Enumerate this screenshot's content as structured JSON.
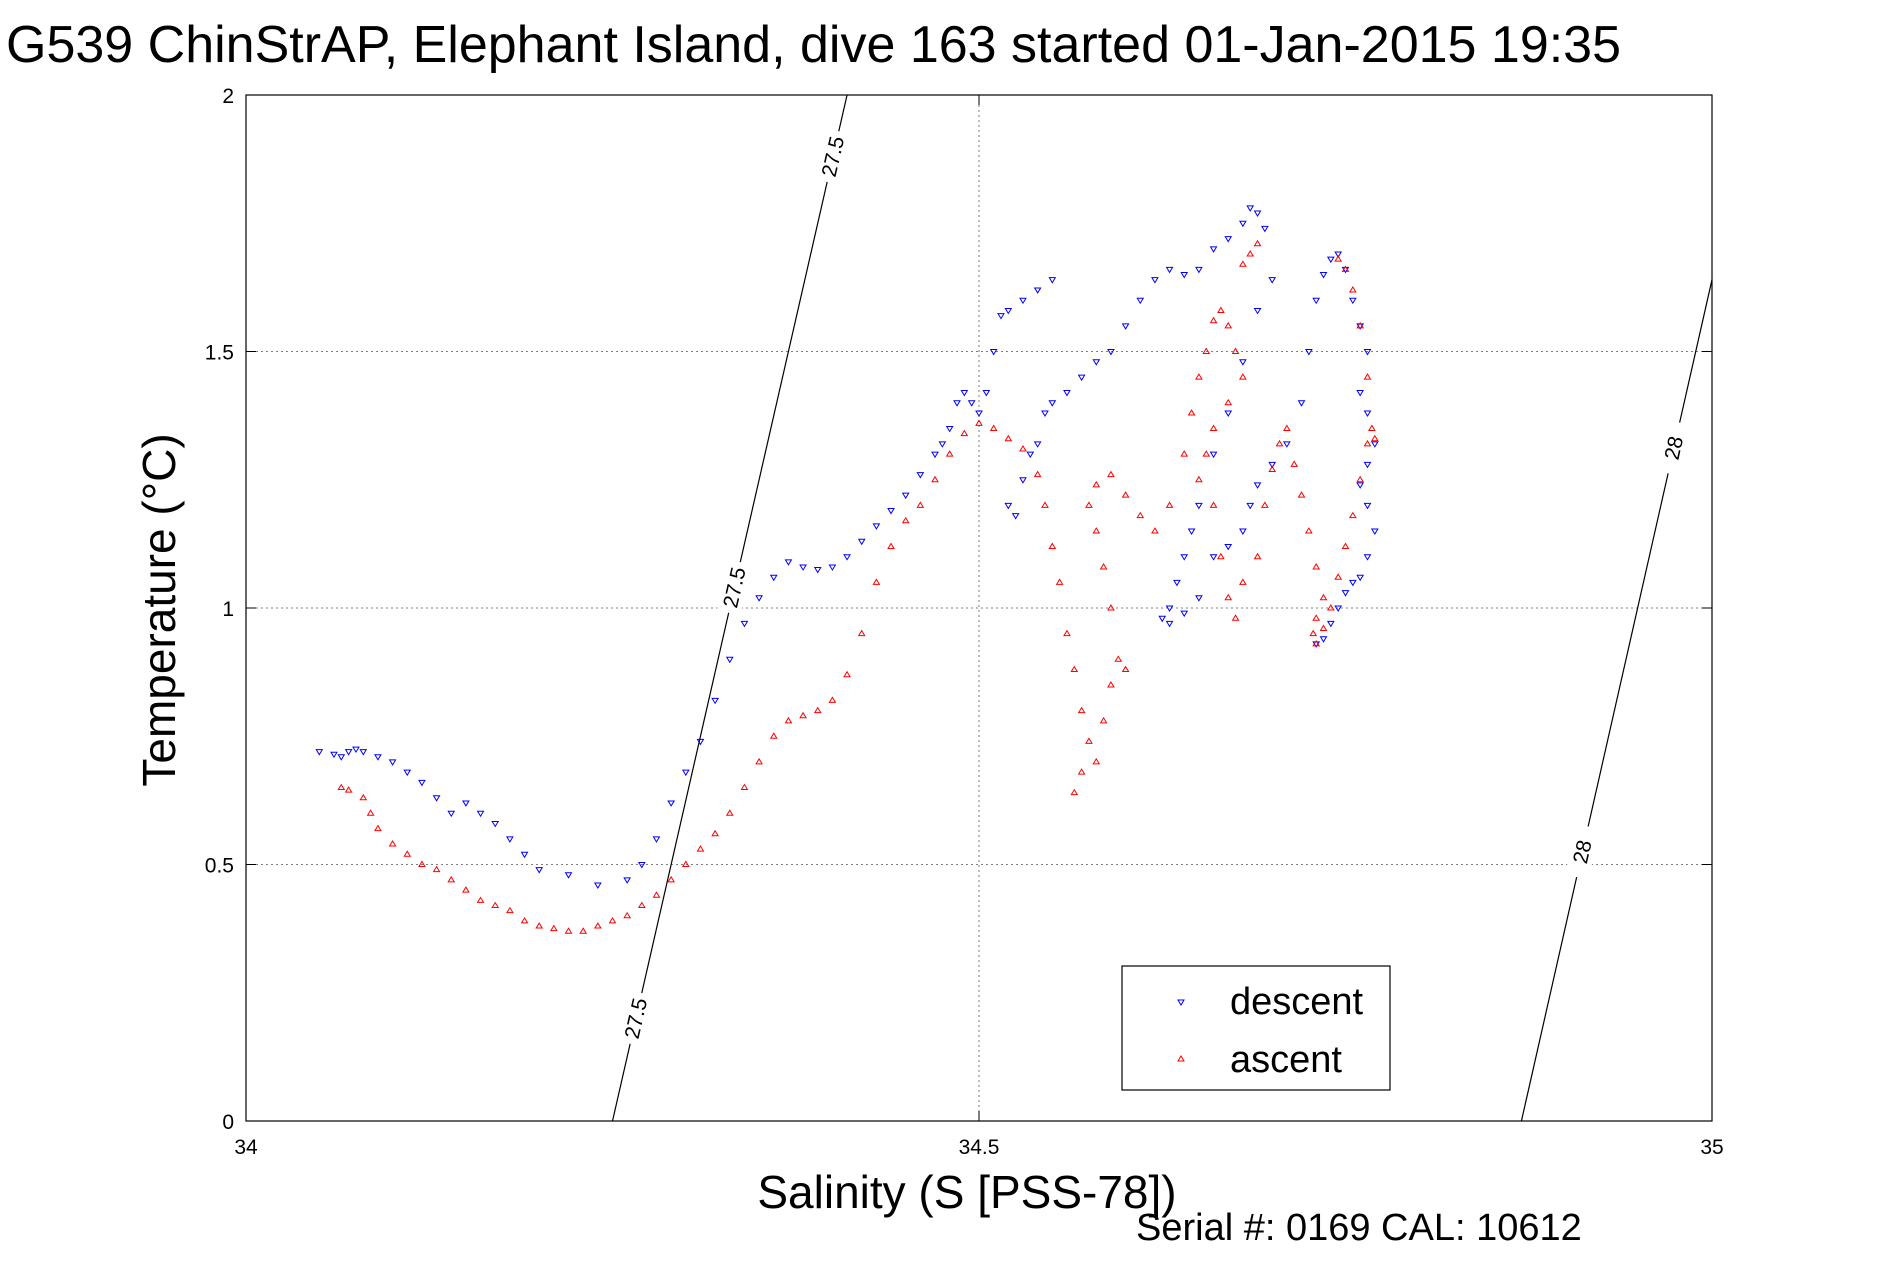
{
  "title": "G539 ChinStrAP, Elephant Island, dive 163 started 01-Jan-2015 19:35",
  "footer": "Serial #: 0169 CAL: 10612",
  "colors": {
    "descent": "#0000ff",
    "ascent": "#ff0000",
    "axes": "#000000",
    "grid": "#7f7f7f"
  },
  "chart_data": {
    "type": "scatter",
    "xlabel": "Salinity (S [PSS-78])",
    "ylabel": "Temperature (°C)",
    "xlim": [
      34,
      35
    ],
    "ylim": [
      0,
      2
    ],
    "xticks": [
      "34",
      "34.5",
      "35"
    ],
    "yticks": [
      "0",
      "0.5",
      "1",
      "1.5",
      "2"
    ],
    "grid": true,
    "legend_position": "bottom-right",
    "series": [
      {
        "name": "descent",
        "marker": "triangle-down",
        "color": "#0000ff",
        "points": [
          [
            34.05,
            0.72
          ],
          [
            34.06,
            0.715
          ],
          [
            34.065,
            0.71
          ],
          [
            34.07,
            0.72
          ],
          [
            34.075,
            0.725
          ],
          [
            34.08,
            0.72
          ],
          [
            34.09,
            0.71
          ],
          [
            34.1,
            0.7
          ],
          [
            34.11,
            0.68
          ],
          [
            34.12,
            0.66
          ],
          [
            34.13,
            0.63
          ],
          [
            34.14,
            0.6
          ],
          [
            34.15,
            0.62
          ],
          [
            34.16,
            0.6
          ],
          [
            34.17,
            0.58
          ],
          [
            34.18,
            0.55
          ],
          [
            34.19,
            0.52
          ],
          [
            34.2,
            0.49
          ],
          [
            34.22,
            0.48
          ],
          [
            34.24,
            0.46
          ],
          [
            34.26,
            0.47
          ],
          [
            34.27,
            0.5
          ],
          [
            34.28,
            0.55
          ],
          [
            34.29,
            0.62
          ],
          [
            34.3,
            0.68
          ],
          [
            34.31,
            0.74
          ],
          [
            34.32,
            0.82
          ],
          [
            34.33,
            0.9
          ],
          [
            34.34,
            0.97
          ],
          [
            34.35,
            1.02
          ],
          [
            34.36,
            1.06
          ],
          [
            34.37,
            1.09
          ],
          [
            34.38,
            1.08
          ],
          [
            34.39,
            1.075
          ],
          [
            34.4,
            1.08
          ],
          [
            34.41,
            1.1
          ],
          [
            34.42,
            1.13
          ],
          [
            34.43,
            1.16
          ],
          [
            34.44,
            1.19
          ],
          [
            34.45,
            1.22
          ],
          [
            34.46,
            1.26
          ],
          [
            34.47,
            1.3
          ],
          [
            34.475,
            1.32
          ],
          [
            34.48,
            1.35
          ],
          [
            34.485,
            1.4
          ],
          [
            34.49,
            1.42
          ],
          [
            34.495,
            1.4
          ],
          [
            34.5,
            1.38
          ],
          [
            34.505,
            1.42
          ],
          [
            34.51,
            1.5
          ],
          [
            34.515,
            1.57
          ],
          [
            34.52,
            1.58
          ],
          [
            34.53,
            1.6
          ],
          [
            34.54,
            1.62
          ],
          [
            34.55,
            1.64
          ],
          [
            34.52,
            1.2
          ],
          [
            34.525,
            1.18
          ],
          [
            34.53,
            1.25
          ],
          [
            34.535,
            1.3
          ],
          [
            34.54,
            1.32
          ],
          [
            34.545,
            1.38
          ],
          [
            34.55,
            1.4
          ],
          [
            34.56,
            1.42
          ],
          [
            34.57,
            1.45
          ],
          [
            34.58,
            1.48
          ],
          [
            34.59,
            1.5
          ],
          [
            34.6,
            1.55
          ],
          [
            34.61,
            1.6
          ],
          [
            34.62,
            1.64
          ],
          [
            34.63,
            1.66
          ],
          [
            34.64,
            1.65
          ],
          [
            34.65,
            1.66
          ],
          [
            34.66,
            1.7
          ],
          [
            34.67,
            1.72
          ],
          [
            34.68,
            1.75
          ],
          [
            34.685,
            1.78
          ],
          [
            34.69,
            1.77
          ],
          [
            34.695,
            1.74
          ],
          [
            34.7,
            1.64
          ],
          [
            34.69,
            1.58
          ],
          [
            34.68,
            1.48
          ],
          [
            34.67,
            1.38
          ],
          [
            34.66,
            1.3
          ],
          [
            34.65,
            1.2
          ],
          [
            34.645,
            1.15
          ],
          [
            34.64,
            1.1
          ],
          [
            34.635,
            1.05
          ],
          [
            34.63,
            1.0
          ],
          [
            34.625,
            0.98
          ],
          [
            34.63,
            0.97
          ],
          [
            34.64,
            0.99
          ],
          [
            34.65,
            1.02
          ],
          [
            34.66,
            1.1
          ],
          [
            34.67,
            1.12
          ],
          [
            34.68,
            1.15
          ],
          [
            34.685,
            1.2
          ],
          [
            34.69,
            1.24
          ],
          [
            34.7,
            1.28
          ],
          [
            34.71,
            1.32
          ],
          [
            34.72,
            1.4
          ],
          [
            34.725,
            1.5
          ],
          [
            34.73,
            1.6
          ],
          [
            34.735,
            1.65
          ],
          [
            34.74,
            1.68
          ],
          [
            34.745,
            1.69
          ],
          [
            34.75,
            1.66
          ],
          [
            34.755,
            1.6
          ],
          [
            34.76,
            1.55
          ],
          [
            34.765,
            1.5
          ],
          [
            34.76,
            1.42
          ],
          [
            34.765,
            1.38
          ],
          [
            34.77,
            1.32
          ],
          [
            34.765,
            1.28
          ],
          [
            34.76,
            1.24
          ],
          [
            34.765,
            1.2
          ],
          [
            34.77,
            1.15
          ],
          [
            34.765,
            1.1
          ],
          [
            34.76,
            1.06
          ],
          [
            34.755,
            1.05
          ],
          [
            34.75,
            1.03
          ],
          [
            34.745,
            1.0
          ],
          [
            34.74,
            0.97
          ],
          [
            34.735,
            0.94
          ],
          [
            34.73,
            0.93
          ]
        ]
      },
      {
        "name": "ascent",
        "marker": "triangle-up",
        "color": "#ff0000",
        "points": [
          [
            34.065,
            0.65
          ],
          [
            34.07,
            0.645
          ],
          [
            34.08,
            0.63
          ],
          [
            34.085,
            0.6
          ],
          [
            34.09,
            0.57
          ],
          [
            34.1,
            0.54
          ],
          [
            34.11,
            0.52
          ],
          [
            34.12,
            0.5
          ],
          [
            34.13,
            0.49
          ],
          [
            34.14,
            0.47
          ],
          [
            34.15,
            0.45
          ],
          [
            34.16,
            0.43
          ],
          [
            34.17,
            0.42
          ],
          [
            34.18,
            0.41
          ],
          [
            34.19,
            0.39
          ],
          [
            34.2,
            0.38
          ],
          [
            34.21,
            0.375
          ],
          [
            34.22,
            0.37
          ],
          [
            34.23,
            0.37
          ],
          [
            34.24,
            0.38
          ],
          [
            34.25,
            0.39
          ],
          [
            34.26,
            0.4
          ],
          [
            34.27,
            0.42
          ],
          [
            34.28,
            0.44
          ],
          [
            34.29,
            0.47
          ],
          [
            34.3,
            0.5
          ],
          [
            34.31,
            0.53
          ],
          [
            34.32,
            0.56
          ],
          [
            34.33,
            0.6
          ],
          [
            34.34,
            0.65
          ],
          [
            34.35,
            0.7
          ],
          [
            34.36,
            0.75
          ],
          [
            34.37,
            0.78
          ],
          [
            34.38,
            0.79
          ],
          [
            34.39,
            0.8
          ],
          [
            34.4,
            0.82
          ],
          [
            34.41,
            0.87
          ],
          [
            34.42,
            0.95
          ],
          [
            34.43,
            1.05
          ],
          [
            34.44,
            1.12
          ],
          [
            34.45,
            1.17
          ],
          [
            34.46,
            1.2
          ],
          [
            34.47,
            1.25
          ],
          [
            34.48,
            1.3
          ],
          [
            34.49,
            1.34
          ],
          [
            34.5,
            1.36
          ],
          [
            34.51,
            1.35
          ],
          [
            34.52,
            1.33
          ],
          [
            34.53,
            1.31
          ],
          [
            34.54,
            1.26
          ],
          [
            34.545,
            1.2
          ],
          [
            34.55,
            1.12
          ],
          [
            34.555,
            1.05
          ],
          [
            34.56,
            0.95
          ],
          [
            34.565,
            0.88
          ],
          [
            34.57,
            0.8
          ],
          [
            34.575,
            0.74
          ],
          [
            34.57,
            0.68
          ],
          [
            34.565,
            0.64
          ],
          [
            34.58,
            0.7
          ],
          [
            34.585,
            0.78
          ],
          [
            34.59,
            0.85
          ],
          [
            34.595,
            0.9
          ],
          [
            34.6,
            0.88
          ],
          [
            34.59,
            1.0
          ],
          [
            34.585,
            1.08
          ],
          [
            34.58,
            1.15
          ],
          [
            34.575,
            1.2
          ],
          [
            34.58,
            1.24
          ],
          [
            34.59,
            1.26
          ],
          [
            34.6,
            1.22
          ],
          [
            34.61,
            1.18
          ],
          [
            34.62,
            1.15
          ],
          [
            34.63,
            1.2
          ],
          [
            34.64,
            1.3
          ],
          [
            34.645,
            1.38
          ],
          [
            34.65,
            1.45
          ],
          [
            34.655,
            1.5
          ],
          [
            34.66,
            1.56
          ],
          [
            34.665,
            1.58
          ],
          [
            34.67,
            1.55
          ],
          [
            34.675,
            1.5
          ],
          [
            34.68,
            1.45
          ],
          [
            34.67,
            1.4
          ],
          [
            34.66,
            1.35
          ],
          [
            34.655,
            1.3
          ],
          [
            34.65,
            1.25
          ],
          [
            34.66,
            1.2
          ],
          [
            34.665,
            1.1
          ],
          [
            34.67,
            1.02
          ],
          [
            34.675,
            0.98
          ],
          [
            34.68,
            1.05
          ],
          [
            34.69,
            1.1
          ],
          [
            34.695,
            1.2
          ],
          [
            34.7,
            1.27
          ],
          [
            34.705,
            1.32
          ],
          [
            34.71,
            1.35
          ],
          [
            34.715,
            1.28
          ],
          [
            34.72,
            1.22
          ],
          [
            34.725,
            1.15
          ],
          [
            34.73,
            1.08
          ],
          [
            34.735,
            1.02
          ],
          [
            34.73,
            0.98
          ],
          [
            34.728,
            0.95
          ],
          [
            34.73,
            0.93
          ],
          [
            34.735,
            0.96
          ],
          [
            34.74,
            1.0
          ],
          [
            34.745,
            1.06
          ],
          [
            34.75,
            1.12
          ],
          [
            34.755,
            1.18
          ],
          [
            34.76,
            1.25
          ],
          [
            34.765,
            1.32
          ],
          [
            34.768,
            1.35
          ],
          [
            34.77,
            1.33
          ],
          [
            34.765,
            1.45
          ],
          [
            34.76,
            1.55
          ],
          [
            34.755,
            1.62
          ],
          [
            34.75,
            1.66
          ],
          [
            34.745,
            1.68
          ],
          [
            34.69,
            1.71
          ],
          [
            34.685,
            1.69
          ],
          [
            34.68,
            1.67
          ]
        ]
      }
    ],
    "density_contours": [
      {
        "label": "27.5",
        "line": [
          [
            34.25,
            0
          ],
          [
            34.41,
            2
          ]
        ]
      },
      {
        "label": "28",
        "line": [
          [
            34.87,
            0
          ],
          [
            35,
            1.64
          ]
        ]
      }
    ]
  }
}
